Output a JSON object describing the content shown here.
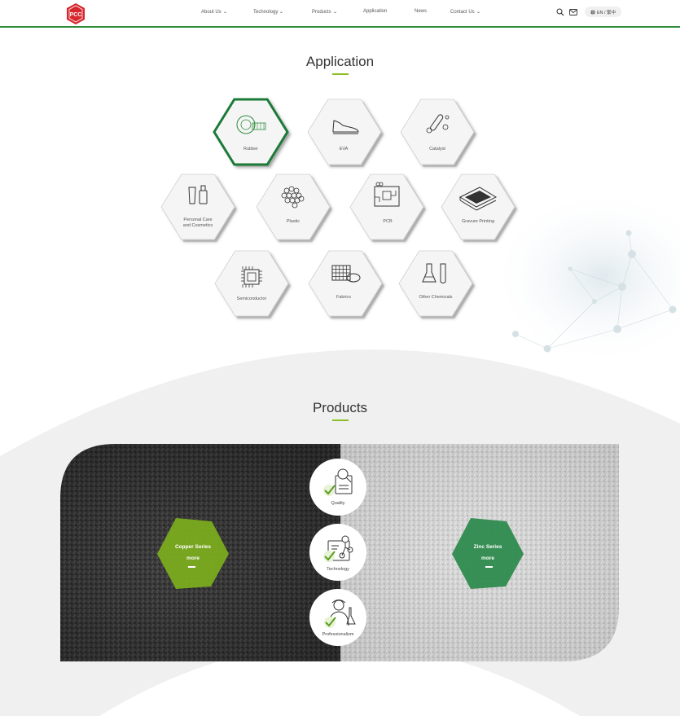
{
  "header": {
    "logo_text": "PCC",
    "nav": [
      {
        "label": "About Us",
        "dropdown": true
      },
      {
        "label": "Technology",
        "dropdown": true
      },
      {
        "label": "Products",
        "dropdown": true
      },
      {
        "label": "Application",
        "dropdown": false
      },
      {
        "label": "News",
        "dropdown": false
      },
      {
        "label": "Contact Us",
        "dropdown": true
      }
    ],
    "search_icon": "search-icon",
    "mail_icon": "mail-icon",
    "language": "EN / 繁中",
    "accent_color": "#2e8b3d"
  },
  "application": {
    "title": "Application",
    "items": [
      {
        "label": "Rubber",
        "icon": "tire-icon",
        "active": true
      },
      {
        "label": "EVA",
        "icon": "shoe-icon",
        "active": false
      },
      {
        "label": "Catalyst",
        "icon": "test-tube-icon",
        "active": false
      },
      {
        "label": "Personal Care and Cosmetics",
        "line1": "Personal Care",
        "line2": "and Cosmetics",
        "icon": "cosmetics-icon",
        "active": false
      },
      {
        "label": "Plastic",
        "icon": "pellets-icon",
        "active": false
      },
      {
        "label": "PCB",
        "icon": "circuit-board-icon",
        "active": false
      },
      {
        "label": "Gravure Printing",
        "icon": "printing-icon",
        "active": false
      },
      {
        "label": "Semiconductor",
        "icon": "chip-icon",
        "active": false
      },
      {
        "label": "Fabrics",
        "icon": "fabric-icon",
        "active": false
      },
      {
        "label": "Other Chemicals",
        "icon": "flask-icon",
        "active": false
      }
    ]
  },
  "products": {
    "title": "Products",
    "series": [
      {
        "name": "Copper Series",
        "more": "more",
        "color": "#7aab1f"
      },
      {
        "name": "Zinc Series",
        "more": "more",
        "color": "#2e8b4e"
      }
    ],
    "features": [
      {
        "label": "Quality",
        "icon": "quality-check-icon"
      },
      {
        "label": "Technology",
        "icon": "technology-icon"
      },
      {
        "label": "Professionalism",
        "icon": "scientist-icon"
      }
    ]
  }
}
